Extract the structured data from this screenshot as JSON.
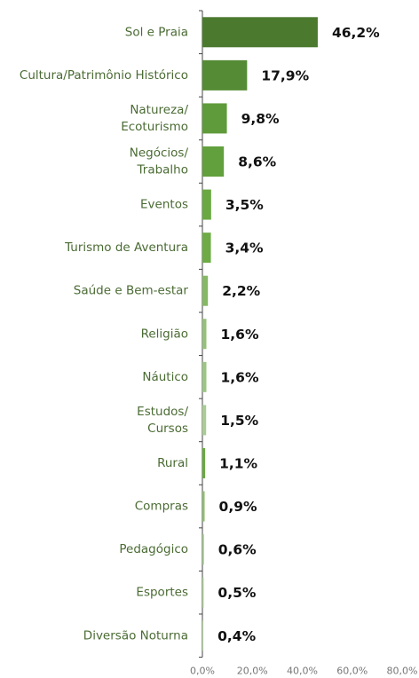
{
  "chart_data": {
    "type": "bar",
    "orientation": "horizontal",
    "categories": [
      "Sol e Praia",
      "Cultura/Patrimônio Histórico",
      "Natureza/\nEcoturismo",
      "Negócios/\nTrabalho",
      "Eventos",
      "Turismo de Aventura",
      "Saúde e Bem-estar",
      "Religião",
      "Náutico",
      "Estudos/\nCursos",
      "Rural",
      "Compras",
      "Pedagógico",
      "Esportes",
      "Diversão Noturna"
    ],
    "values": [
      46.2,
      17.9,
      9.8,
      8.6,
      3.5,
      3.4,
      2.2,
      1.6,
      1.6,
      1.5,
      1.1,
      0.9,
      0.6,
      0.5,
      0.4
    ],
    "value_labels": [
      "46,2%",
      "17,9%",
      "9,8%",
      "8,6%",
      "3,5%",
      "3,4%",
      "2,2%",
      "1,6%",
      "1,6%",
      "1,5%",
      "1,1%",
      "0,9%",
      "0,6%",
      "0,5%",
      "0,4%"
    ],
    "colors": [
      "#4b7a2f",
      "#558b35",
      "#5f9b3b",
      "#62a03e",
      "#6aa842",
      "#6eab46",
      "#86b865",
      "#95c07a",
      "#9cc584",
      "#a8cc92",
      "#6aa842",
      "#8fbd72",
      "#9cc584",
      "#a8cc92",
      "#b5d4a2"
    ],
    "xlim": [
      0,
      80
    ],
    "xticks": [
      {
        "value": 0,
        "label": "0,0%"
      },
      {
        "value": 20,
        "label": "20,0%"
      },
      {
        "value": 40,
        "label": "40,0%"
      },
      {
        "value": 60,
        "label": "60,0%"
      },
      {
        "value": 80,
        "label": "80,0%"
      }
    ]
  }
}
